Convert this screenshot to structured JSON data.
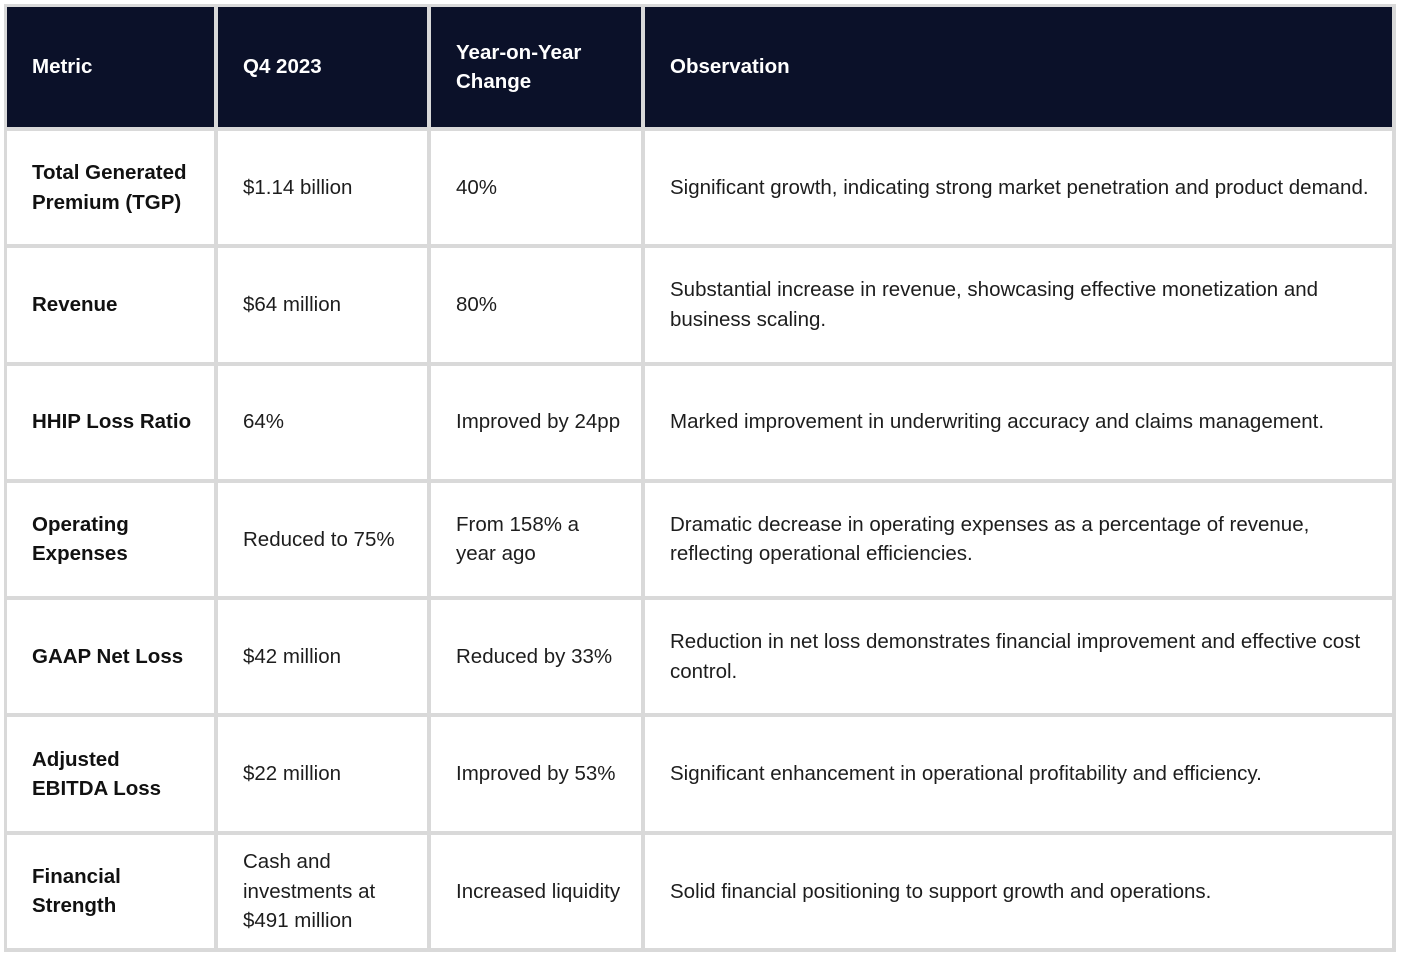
{
  "table": {
    "headers": [
      "Metric",
      "Q4 2023",
      "Year-on-Year Change",
      "Observation"
    ],
    "rows": [
      {
        "metric": "Total Generated Premium (TGP)",
        "q4_2023": "$1.14 billion",
        "yoy_change": "40%",
        "observation": "Significant growth, indicating strong market penetration and product demand."
      },
      {
        "metric": "Revenue",
        "q4_2023": "$64 million",
        "yoy_change": "80%",
        "observation": "Substantial increase in revenue, showcasing effective monetization and business scaling."
      },
      {
        "metric": "HHIP Loss Ratio",
        "q4_2023": "64%",
        "yoy_change": "Improved by 24pp",
        "observation": "Marked improvement in underwriting accuracy and claims management."
      },
      {
        "metric": "Operating Expenses",
        "q4_2023": "Reduced to 75%",
        "yoy_change": "From 158% a year ago",
        "observation": "Dramatic decrease in operating expenses as a percentage of revenue, reflecting operational efficiencies."
      },
      {
        "metric": "GAAP Net Loss",
        "q4_2023": "$42 million",
        "yoy_change": "Reduced by 33%",
        "observation": "Reduction in net loss demonstrates financial improvement and effective cost control."
      },
      {
        "metric": "Adjusted EBITDA Loss",
        "q4_2023": "$22 million",
        "yoy_change": "Improved by 53%",
        "observation": "Significant enhancement in operational profitability and efficiency."
      },
      {
        "metric": "Financial Strength",
        "q4_2023": "Cash and investments at $491 million",
        "yoy_change": "Increased liquidity",
        "observation": "Solid financial positioning to support growth and operations."
      }
    ]
  },
  "colors": {
    "header_background": "#0b1129",
    "header_text": "#ffffff",
    "grid_lines": "#d9d9d9",
    "body_text": "#1d1d1d"
  }
}
